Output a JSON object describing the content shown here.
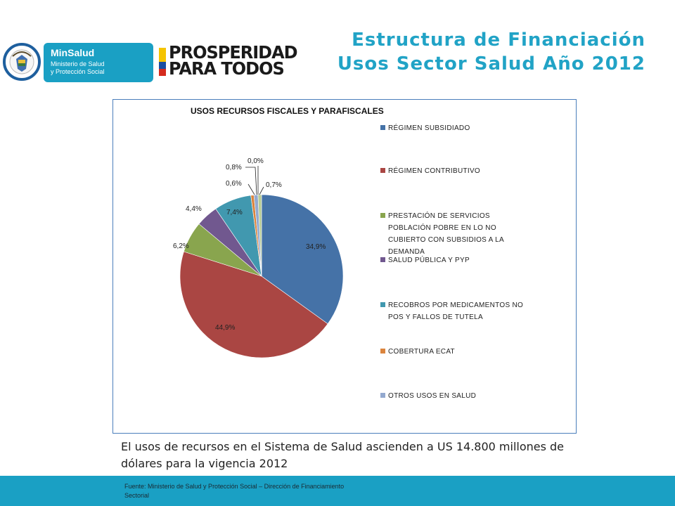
{
  "header": {
    "title_line1": "Estructura de Financiación",
    "title_line2": "Usos Sector Salud Año 2012",
    "minsalud_name": "MinSalud",
    "minsalud_sub": "Ministerio de Salud\ny Protección Social",
    "prosperidad": "PROSPERIDAD\nPARA TODOS",
    "seal_text": "REPÚBLICA DE COLOMBIA"
  },
  "chart_data": {
    "type": "pie",
    "title": "USOS RECURSOS FISCALES Y PARAFISCALES",
    "slices": [
      {
        "name": "RÉGIMEN SUBSIDIADO",
        "value": 34.9,
        "label": "34,9%",
        "color": "#4572a7"
      },
      {
        "name": "RÉGIMEN CONTRIBUTIVO",
        "value": 44.9,
        "label": "44,9%",
        "color": "#aa4643"
      },
      {
        "name": "PRESTACIÓN DE SERVICIOS POBLACIÓN POBRE EN LO NO CUBIERTO CON SUBSIDIOS A LA DEMANDA",
        "value": 6.2,
        "label": "6,2%",
        "color": "#89a54e"
      },
      {
        "name": "SALUD PÚBLICA Y PYP",
        "value": 4.4,
        "label": "4,4%",
        "color": "#71588f"
      },
      {
        "name": "RECOBROS POR MEDICAMENTOS NO POS Y FALLOS DE TUTELA",
        "value": 7.4,
        "label": "7,4%",
        "color": "#4198af"
      },
      {
        "name": "COBERTURA ECAT",
        "value": 0.6,
        "label": "0,6%",
        "color": "#db843d"
      },
      {
        "name": "OTROS USOS EN SALUD",
        "value": 0.8,
        "label": "0,8%",
        "color": "#93a9cf"
      },
      {
        "name": "",
        "value": 0.0,
        "label": "0,0%",
        "color": "#d19392"
      },
      {
        "name": "",
        "value": 0.7,
        "label": "0,7%",
        "color": "#b9cd96"
      }
    ],
    "legend_entries": [
      "RÉGIMEN SUBSIDIADO",
      "RÉGIMEN CONTRIBUTIVO",
      "PRESTACIÓN DE SERVICIOS POBLACIÓN POBRE EN LO NO CUBIERTO CON SUBSIDIOS A LA DEMANDA",
      "SALUD PÚBLICA Y PYP",
      "RECOBROS POR MEDICAMENTOS NO POS Y FALLOS DE TUTELA",
      "COBERTURA ECAT",
      "OTROS USOS EN SALUD"
    ],
    "legend_placement": "right"
  },
  "body_text": "El usos de recursos en el Sistema de Salud ascienden a US 14.800 millones de dólares para la vigencia 2012",
  "footer": {
    "source": "Fuente: Ministerio de Salud y Protección Social – Dirección de Financiamiento Sectorial"
  }
}
